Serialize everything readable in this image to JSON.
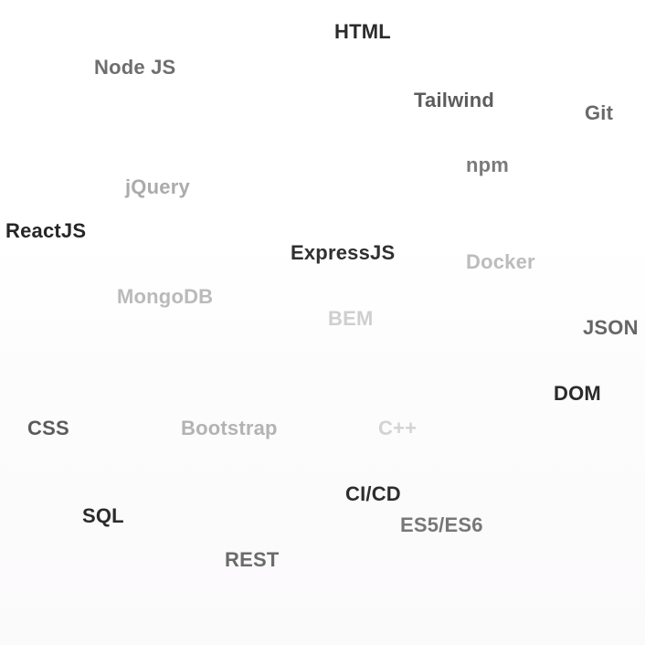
{
  "tag_cloud": {
    "tags": [
      {
        "key": "html",
        "label": "HTML",
        "color": "#2b2b2b"
      },
      {
        "key": "nodejs",
        "label": "Node JS",
        "color": "#6e6e6e"
      },
      {
        "key": "tailwind",
        "label": "Tailwind",
        "color": "#5c5c5c"
      },
      {
        "key": "git",
        "label": "Git",
        "color": "#6a6a6a"
      },
      {
        "key": "npm",
        "label": "npm",
        "color": "#7a7a7a"
      },
      {
        "key": "jquery",
        "label": "jQuery",
        "color": "#ababab"
      },
      {
        "key": "reactjs",
        "label": "ReactJS",
        "color": "#262626"
      },
      {
        "key": "expressjs",
        "label": "ExpressJS",
        "color": "#303030"
      },
      {
        "key": "docker",
        "label": "Docker",
        "color": "#bcbcbc"
      },
      {
        "key": "mongodb",
        "label": "MongoDB",
        "color": "#bababa"
      },
      {
        "key": "bem",
        "label": "BEM",
        "color": "#cfcfcf"
      },
      {
        "key": "json",
        "label": "JSON",
        "color": "#666666"
      },
      {
        "key": "dom",
        "label": "DOM",
        "color": "#2a2a2a"
      },
      {
        "key": "css",
        "label": "CSS",
        "color": "#5b5b5b"
      },
      {
        "key": "bootstrap",
        "label": "Bootstrap",
        "color": "#b3b3b3"
      },
      {
        "key": "cpp",
        "label": "C++",
        "color": "#d3d3d3"
      },
      {
        "key": "cicd",
        "label": "CI/CD",
        "color": "#2d2d2d"
      },
      {
        "key": "sql",
        "label": "SQL",
        "color": "#2a2a2a"
      },
      {
        "key": "es",
        "label": "ES5/ES6",
        "color": "#777777"
      },
      {
        "key": "rest",
        "label": "REST",
        "color": "#6b6b6b"
      }
    ]
  }
}
